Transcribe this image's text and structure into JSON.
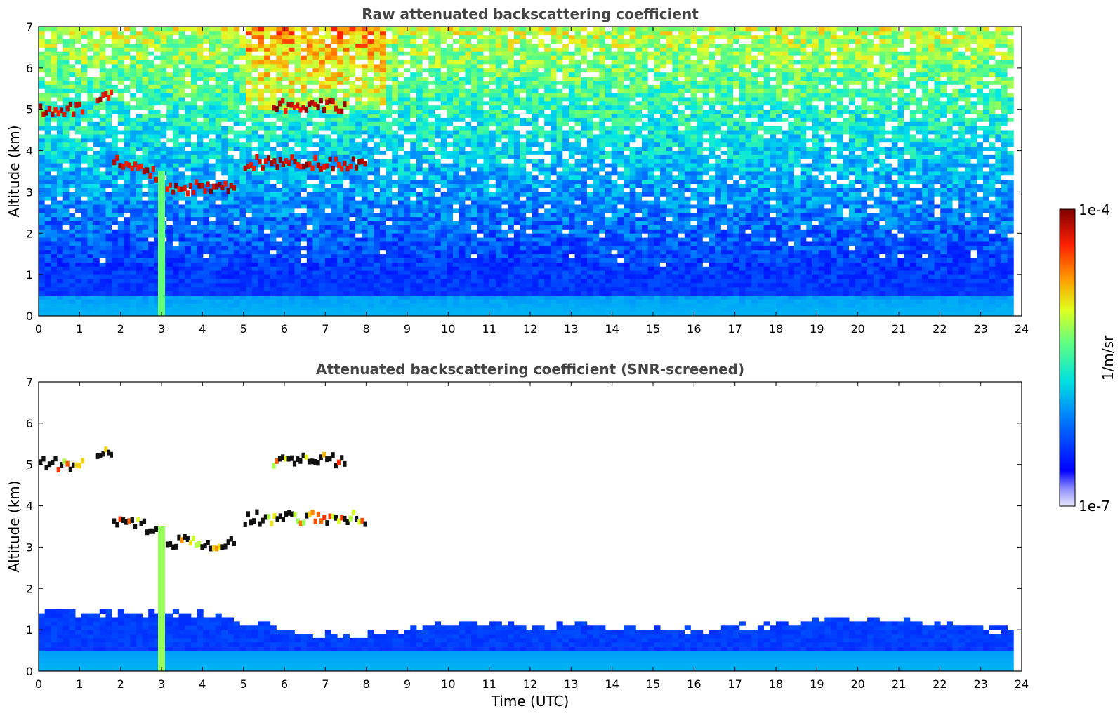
{
  "chart_data": [
    {
      "type": "heatmap",
      "title": "Raw attenuated backscattering coefficient",
      "xlabel": "",
      "ylabel": "Altitude (km)",
      "xlim": [
        0,
        24
      ],
      "ylim": [
        0,
        7
      ],
      "xticks": [
        "0",
        "1",
        "2",
        "3",
        "4",
        "5",
        "6",
        "7",
        "8",
        "9",
        "10",
        "11",
        "12",
        "13",
        "14",
        "15",
        "16",
        "17",
        "18",
        "19",
        "20",
        "21",
        "22",
        "23",
        "24"
      ],
      "yticks": [
        "0",
        "1",
        "2",
        "3",
        "4",
        "5",
        "6",
        "7"
      ],
      "data_end_time": 23.8,
      "cloud_features": [
        {
          "start": 0.0,
          "end": 1.1,
          "altitude": 5.0,
          "intensity": "high"
        },
        {
          "start": 1.4,
          "end": 1.8,
          "altitude": 5.3,
          "intensity": "high"
        },
        {
          "start": 1.8,
          "end": 2.9,
          "altitude": 3.7,
          "intensity": "high"
        },
        {
          "start": 3.1,
          "end": 4.8,
          "altitude": 3.1,
          "intensity": "high"
        },
        {
          "start": 5.0,
          "end": 8.0,
          "altitude": 3.7,
          "intensity": "high"
        },
        {
          "start": 5.7,
          "end": 7.5,
          "altitude": 5.1,
          "intensity": "high"
        }
      ],
      "rain_shaft": {
        "time": 3.0,
        "from_altitude": 3.5,
        "to_altitude": 0.0
      }
    },
    {
      "type": "heatmap",
      "title": "Attenuated backscattering coefficient (SNR-screened)",
      "xlabel": "Time (UTC)",
      "ylabel": "Altitude (km)",
      "xlim": [
        0,
        24
      ],
      "ylim": [
        0,
        7
      ],
      "xticks": [
        "0",
        "1",
        "2",
        "3",
        "4",
        "5",
        "6",
        "7",
        "8",
        "9",
        "10",
        "11",
        "12",
        "13",
        "14",
        "15",
        "16",
        "17",
        "18",
        "19",
        "20",
        "21",
        "22",
        "23",
        "24"
      ],
      "yticks": [
        "0",
        "1",
        "2",
        "3",
        "4",
        "5",
        "6",
        "7"
      ],
      "data_end_time": 23.8,
      "boundary_layer_top": [
        {
          "time": 0,
          "altitude": 1.4
        },
        {
          "time": 4,
          "altitude": 1.4
        },
        {
          "time": 6,
          "altitude": 1.0
        },
        {
          "time": 7.5,
          "altitude": 0.8
        },
        {
          "time": 10,
          "altitude": 1.2
        },
        {
          "time": 16,
          "altitude": 1.0
        },
        {
          "time": 20,
          "altitude": 1.3
        },
        {
          "time": 23.8,
          "altitude": 1.0
        }
      ]
    }
  ],
  "colorbar": {
    "label": "1/m/sr",
    "max_label": "1e-4",
    "min_label": "1e-7",
    "scale": "log",
    "range": [
      1e-07,
      0.0001
    ]
  },
  "colors": {
    "title": "#444444",
    "low": "#0000ff",
    "high": "#800000"
  }
}
